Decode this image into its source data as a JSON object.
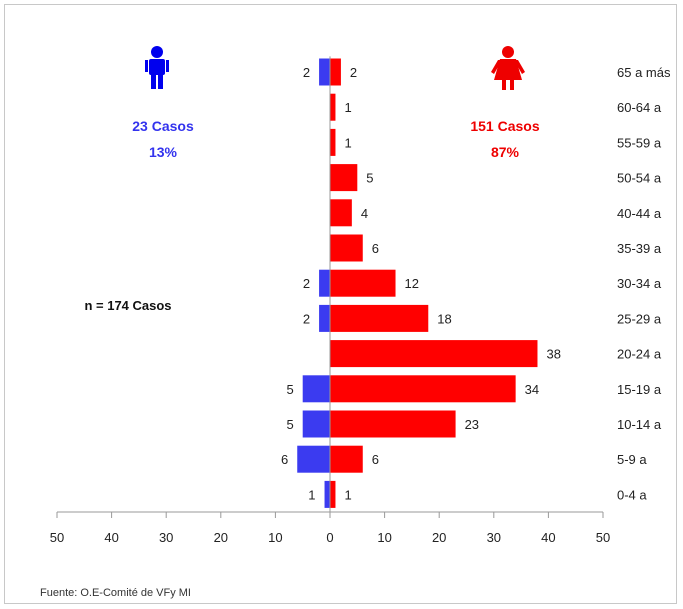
{
  "chart_data": {
    "type": "bar",
    "orientation": "horizontal",
    "categories": [
      "65  a más",
      "60-64 a",
      "55-59 a",
      "50-54 a",
      "40-44 a",
      "35-39 a",
      "30-34 a",
      "25-29 a",
      "20-24 a",
      "15-19 a",
      "10-14 a",
      "5-9 a",
      "0-4 a"
    ],
    "series": [
      {
        "values": [
          2,
          null,
          null,
          null,
          null,
          null,
          2,
          2,
          null,
          5,
          5,
          6,
          1
        ],
        "color": "#3b3bf0",
        "side": "left"
      },
      {
        "values": [
          2,
          1,
          1,
          5,
          4,
          6,
          12,
          18,
          38,
          34,
          23,
          6,
          1
        ],
        "color": "#ff0000",
        "side": "right"
      }
    ],
    "xlim": [
      -50,
      50
    ],
    "x_ticks": [
      "50",
      "40",
      "30",
      "20",
      "10",
      "0",
      "10",
      "20",
      "30",
      "40",
      "50"
    ],
    "male": {
      "cases": "23 Casos",
      "percent": "13%",
      "icon": "male-person-icon",
      "color": "#0000ee"
    },
    "female": {
      "cases": "151 Casos",
      "percent": "87%",
      "icon": "female-person-icon",
      "color": "#ee0000"
    },
    "total_label": "n = 174  Casos",
    "source": "Fuente: O.E-Comité  de VFy MI",
    "grid": false
  }
}
